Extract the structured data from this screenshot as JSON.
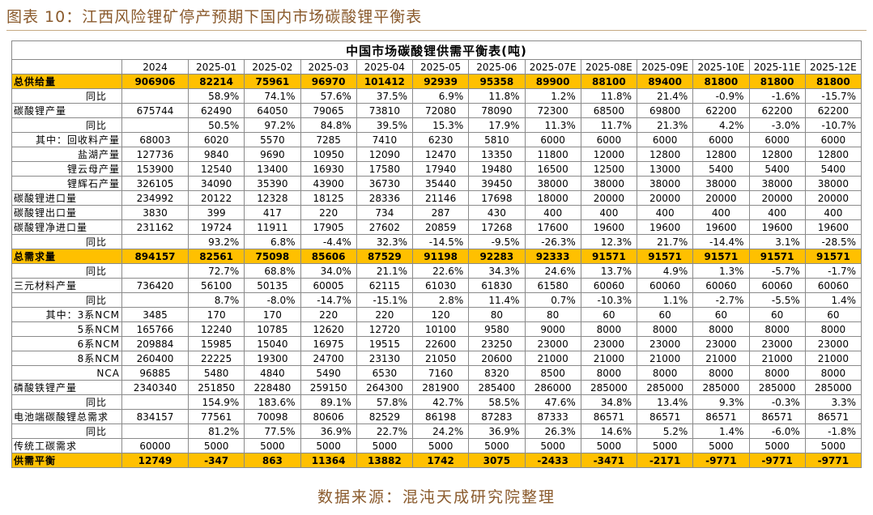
{
  "header": {
    "title": "图表 10：江西风险锂矿停产预期下国内市场碳酸锂平衡表"
  },
  "table": {
    "title": "中国市场碳酸锂供需平衡表(吨)",
    "columns": [
      "2024",
      "2025-01",
      "2025-02",
      "2025-03",
      "2025-04",
      "2025-05",
      "2025-06",
      "2025-07E",
      "2025-08E",
      "2025-09E",
      "2025-10E",
      "2025-11E",
      "2025-12E"
    ],
    "rows": [
      [
        "总供给量",
        "906906",
        "82214",
        "75961",
        "96970",
        "101412",
        "92939",
        "95358",
        "89900",
        "88100",
        "89400",
        "81800",
        "81800",
        "81800"
      ],
      [
        "同比",
        null,
        "58.9%",
        "74.1%",
        "57.6%",
        "37.5%",
        "6.9%",
        "11.8%",
        "1.2%",
        "11.8%",
        "21.4%",
        "-0.9%",
        "-1.6%",
        "-15.7%"
      ],
      [
        "碳酸锂产量",
        "675744",
        "62490",
        "64050",
        "79065",
        "73810",
        "72080",
        "78090",
        "72300",
        "68500",
        "69800",
        "62200",
        "62200",
        "62200"
      ],
      [
        "同比",
        null,
        "50.5%",
        "97.2%",
        "84.8%",
        "39.5%",
        "15.3%",
        "17.9%",
        "11.3%",
        "11.7%",
        "21.3%",
        "4.2%",
        "-3.0%",
        "-10.7%"
      ],
      [
        "其中：回收料产量",
        "68003",
        "6020",
        "5570",
        "7285",
        "7410",
        "6230",
        "5810",
        "6000",
        "6000",
        "6000",
        "6000",
        "6000",
        "6000"
      ],
      [
        "盐湖产量",
        "127736",
        "9840",
        "9690",
        "10950",
        "12090",
        "12470",
        "13350",
        "11800",
        "12000",
        "12800",
        "12800",
        "12800",
        "12800"
      ],
      [
        "锂云母产量",
        "153900",
        "12540",
        "13400",
        "16930",
        "17580",
        "17940",
        "19480",
        "16500",
        "12500",
        "13000",
        "5400",
        "5400",
        "5400"
      ],
      [
        "锂辉石产量",
        "326105",
        "34090",
        "35390",
        "43900",
        "36730",
        "35440",
        "39450",
        "38000",
        "38000",
        "38000",
        "38000",
        "38000",
        "38000"
      ],
      [
        "碳酸锂进口量",
        "234992",
        "20122",
        "12328",
        "18125",
        "28336",
        "21146",
        "17698",
        "18000",
        "20000",
        "20000",
        "20000",
        "20000",
        "20000"
      ],
      [
        "碳酸锂出口量",
        "3830",
        "399",
        "417",
        "220",
        "734",
        "287",
        "430",
        "400",
        "400",
        "400",
        "400",
        "400",
        "400"
      ],
      [
        "碳酸锂净进口量",
        "231162",
        "19724",
        "11911",
        "17905",
        "27602",
        "20859",
        "17268",
        "17600",
        "19600",
        "19600",
        "19600",
        "19600",
        "19600"
      ],
      [
        "同比",
        null,
        "93.2%",
        "6.8%",
        "-4.4%",
        "32.3%",
        "-14.5%",
        "-9.5%",
        "-26.3%",
        "12.3%",
        "21.7%",
        "-14.4%",
        "3.1%",
        "-28.5%"
      ],
      [
        "总需求量",
        "894157",
        "82561",
        "75098",
        "85606",
        "87529",
        "91198",
        "92283",
        "92333",
        "91571",
        "91571",
        "91571",
        "91571",
        "91571"
      ],
      [
        "同比",
        null,
        "72.7%",
        "68.8%",
        "34.0%",
        "21.1%",
        "22.6%",
        "34.3%",
        "24.6%",
        "13.7%",
        "4.9%",
        "1.3%",
        "-5.7%",
        "-1.7%"
      ],
      [
        "三元材料产量",
        "736420",
        "56100",
        "50135",
        "60005",
        "62115",
        "61030",
        "61830",
        "61580",
        "60060",
        "60060",
        "60060",
        "60060",
        "60060"
      ],
      [
        "同比",
        null,
        "8.7%",
        "-8.0%",
        "-14.7%",
        "-15.1%",
        "2.8%",
        "11.4%",
        "0.7%",
        "-10.3%",
        "1.1%",
        "-2.7%",
        "-5.5%",
        "1.4%"
      ],
      [
        "其中：3系NCM",
        "3485",
        "170",
        "170",
        "220",
        "220",
        "120",
        "80",
        "80",
        "60",
        "60",
        "60",
        "60",
        "60"
      ],
      [
        "5系NCM",
        "165766",
        "12240",
        "10785",
        "12620",
        "12720",
        "10100",
        "9580",
        "9000",
        "8000",
        "8000",
        "8000",
        "8000",
        "8000"
      ],
      [
        "6系NCM",
        "209884",
        "15985",
        "15040",
        "16975",
        "19515",
        "22600",
        "23250",
        "23000",
        "23000",
        "23000",
        "23000",
        "23000",
        "23000"
      ],
      [
        "8系NCM",
        "260400",
        "22225",
        "19300",
        "24700",
        "23130",
        "21050",
        "20600",
        "21000",
        "21000",
        "21000",
        "21000",
        "21000",
        "21000"
      ],
      [
        "NCA",
        "96885",
        "5480",
        "4840",
        "5490",
        "6530",
        "7160",
        "8320",
        "8500",
        "8000",
        "8000",
        "8000",
        "8000",
        "8000"
      ],
      [
        "磷酸铁锂产量",
        "2340340",
        "251850",
        "228480",
        "259150",
        "264300",
        "281900",
        "285400",
        "286000",
        "285000",
        "285000",
        "285000",
        "285000",
        "285000"
      ],
      [
        "同比",
        null,
        "154.9%",
        "183.6%",
        "89.1%",
        "57.8%",
        "42.7%",
        "58.5%",
        "47.6%",
        "34.8%",
        "13.4%",
        "9.3%",
        "-0.3%",
        "3.3%"
      ],
      [
        "电池端碳酸锂总需求",
        "834157",
        "77561",
        "70098",
        "80606",
        "82529",
        "86198",
        "87283",
        "87333",
        "86571",
        "86571",
        "86571",
        "86571",
        "86571"
      ],
      [
        "同比",
        null,
        "81.2%",
        "77.5%",
        "36.9%",
        "22.7%",
        "24.2%",
        "36.9%",
        "26.3%",
        "14.6%",
        "5.2%",
        "1.4%",
        "-6.0%",
        "-1.8%"
      ],
      [
        "传统工碳需求",
        "60000",
        "5000",
        "5000",
        "5000",
        "5000",
        "5000",
        "5000",
        "5000",
        "5000",
        "5000",
        "5000",
        "5000",
        "5000"
      ],
      [
        "供需平衡",
        "12749",
        "-347",
        "863",
        "11364",
        "13882",
        "1742",
        "3075",
        "-2433",
        "-3471",
        "-2171",
        "-9771",
        "-9771",
        "-9771"
      ]
    ]
  },
  "footer": {
    "source": "数据来源：混沌天成研究院整理"
  }
}
